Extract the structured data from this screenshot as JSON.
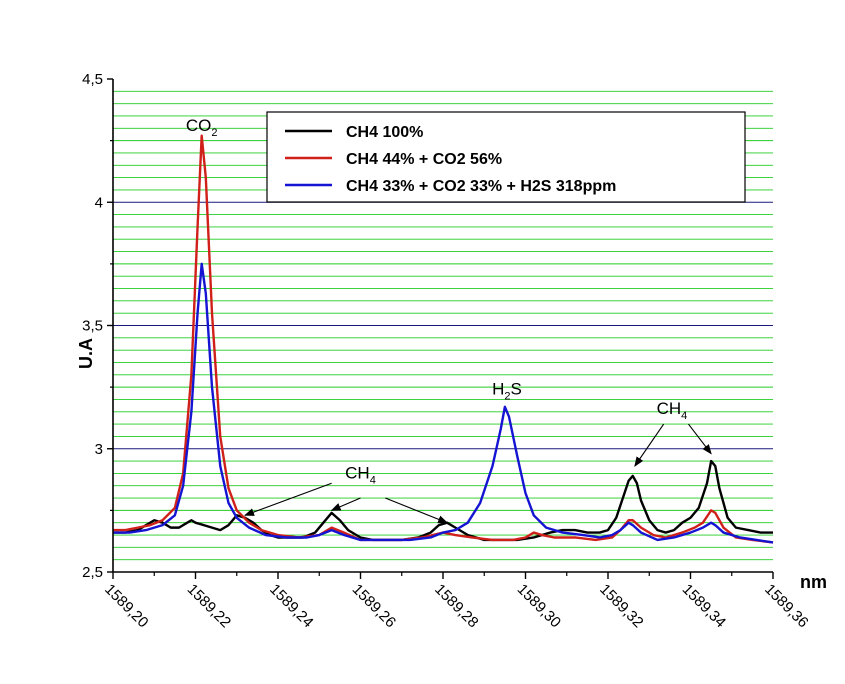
{
  "chart_data": {
    "type": "line",
    "xlabel": "nm",
    "ylabel": "U.A",
    "xlim": [
      1589.2,
      1589.36
    ],
    "ylim": [
      2.5,
      4.5
    ],
    "x_ticks": [
      "1589,20",
      "1589,22",
      "1589,24",
      "1589,26",
      "1589,28",
      "1589,30",
      "1589,32",
      "1589,34",
      "1589,36"
    ],
    "y_ticks": [
      "2,5",
      "3",
      "3,5",
      "4",
      "4,5"
    ],
    "grid": {
      "minor": true,
      "minor_color": "#22cc22",
      "major_color": "#1a1a7a"
    },
    "legend_position": "top-right",
    "series": [
      {
        "name": "CH4 100%",
        "color": "#000000",
        "points": [
          [
            1589.2,
            2.66
          ],
          [
            1589.203,
            2.66
          ],
          [
            1589.206,
            2.67
          ],
          [
            1589.208,
            2.69
          ],
          [
            1589.21,
            2.71
          ],
          [
            1589.212,
            2.7
          ],
          [
            1589.214,
            2.68
          ],
          [
            1589.216,
            2.68
          ],
          [
            1589.218,
            2.7
          ],
          [
            1589.219,
            2.71
          ],
          [
            1589.22,
            2.7
          ],
          [
            1589.222,
            2.69
          ],
          [
            1589.224,
            2.68
          ],
          [
            1589.226,
            2.67
          ],
          [
            1589.228,
            2.69
          ],
          [
            1589.229,
            2.71
          ],
          [
            1589.23,
            2.73
          ],
          [
            1589.232,
            2.72
          ],
          [
            1589.234,
            2.7
          ],
          [
            1589.236,
            2.67
          ],
          [
            1589.238,
            2.65
          ],
          [
            1589.24,
            2.64
          ],
          [
            1589.243,
            2.64
          ],
          [
            1589.246,
            2.64
          ],
          [
            1589.249,
            2.66
          ],
          [
            1589.251,
            2.7
          ],
          [
            1589.253,
            2.74
          ],
          [
            1589.255,
            2.71
          ],
          [
            1589.257,
            2.67
          ],
          [
            1589.26,
            2.64
          ],
          [
            1589.263,
            2.63
          ],
          [
            1589.266,
            2.63
          ],
          [
            1589.27,
            2.63
          ],
          [
            1589.274,
            2.64
          ],
          [
            1589.277,
            2.66
          ],
          [
            1589.279,
            2.69
          ],
          [
            1589.281,
            2.7
          ],
          [
            1589.283,
            2.68
          ],
          [
            1589.286,
            2.65
          ],
          [
            1589.29,
            2.63
          ],
          [
            1589.294,
            2.63
          ],
          [
            1589.298,
            2.63
          ],
          [
            1589.302,
            2.64
          ],
          [
            1589.306,
            2.66
          ],
          [
            1589.309,
            2.67
          ],
          [
            1589.312,
            2.67
          ],
          [
            1589.315,
            2.66
          ],
          [
            1589.318,
            2.66
          ],
          [
            1589.32,
            2.67
          ],
          [
            1589.322,
            2.72
          ],
          [
            1589.324,
            2.82
          ],
          [
            1589.325,
            2.87
          ],
          [
            1589.326,
            2.89
          ],
          [
            1589.327,
            2.86
          ],
          [
            1589.328,
            2.79
          ],
          [
            1589.33,
            2.71
          ],
          [
            1589.332,
            2.67
          ],
          [
            1589.334,
            2.66
          ],
          [
            1589.336,
            2.67
          ],
          [
            1589.338,
            2.7
          ],
          [
            1589.34,
            2.72
          ],
          [
            1589.342,
            2.76
          ],
          [
            1589.344,
            2.86
          ],
          [
            1589.345,
            2.95
          ],
          [
            1589.346,
            2.93
          ],
          [
            1589.347,
            2.84
          ],
          [
            1589.349,
            2.72
          ],
          [
            1589.351,
            2.68
          ],
          [
            1589.354,
            2.67
          ],
          [
            1589.357,
            2.66
          ],
          [
            1589.36,
            2.66
          ]
        ]
      },
      {
        "name": "CH4 44% + CO2 56%",
        "color": "#d0201a",
        "points": [
          [
            1589.2,
            2.67
          ],
          [
            1589.203,
            2.67
          ],
          [
            1589.206,
            2.68
          ],
          [
            1589.209,
            2.69
          ],
          [
            1589.212,
            2.71
          ],
          [
            1589.215,
            2.76
          ],
          [
            1589.217,
            2.9
          ],
          [
            1589.219,
            3.3
          ],
          [
            1589.2205,
            3.9
          ],
          [
            1589.2215,
            4.27
          ],
          [
            1589.2225,
            4.1
          ],
          [
            1589.224,
            3.55
          ],
          [
            1589.226,
            3.05
          ],
          [
            1589.228,
            2.84
          ],
          [
            1589.23,
            2.75
          ],
          [
            1589.233,
            2.7
          ],
          [
            1589.236,
            2.67
          ],
          [
            1589.24,
            2.65
          ],
          [
            1589.245,
            2.64
          ],
          [
            1589.25,
            2.65
          ],
          [
            1589.253,
            2.68
          ],
          [
            1589.256,
            2.66
          ],
          [
            1589.26,
            2.63
          ],
          [
            1589.265,
            2.63
          ],
          [
            1589.27,
            2.63
          ],
          [
            1589.275,
            2.64
          ],
          [
            1589.28,
            2.66
          ],
          [
            1589.283,
            2.65
          ],
          [
            1589.287,
            2.64
          ],
          [
            1589.292,
            2.63
          ],
          [
            1589.297,
            2.63
          ],
          [
            1589.3,
            2.64
          ],
          [
            1589.302,
            2.66
          ],
          [
            1589.304,
            2.65
          ],
          [
            1589.307,
            2.64
          ],
          [
            1589.312,
            2.64
          ],
          [
            1589.317,
            2.63
          ],
          [
            1589.321,
            2.64
          ],
          [
            1589.323,
            2.67
          ],
          [
            1589.325,
            2.71
          ],
          [
            1589.326,
            2.71
          ],
          [
            1589.328,
            2.68
          ],
          [
            1589.331,
            2.65
          ],
          [
            1589.334,
            2.64
          ],
          [
            1589.338,
            2.66
          ],
          [
            1589.341,
            2.68
          ],
          [
            1589.343,
            2.7
          ],
          [
            1589.345,
            2.75
          ],
          [
            1589.346,
            2.74
          ],
          [
            1589.348,
            2.68
          ],
          [
            1589.351,
            2.64
          ],
          [
            1589.355,
            2.63
          ],
          [
            1589.36,
            2.62
          ]
        ]
      },
      {
        "name": "CH4 33% + CO2 33% + H2S 318ppm",
        "color": "#1414d2",
        "points": [
          [
            1589.2,
            2.66
          ],
          [
            1589.204,
            2.66
          ],
          [
            1589.208,
            2.67
          ],
          [
            1589.212,
            2.69
          ],
          [
            1589.215,
            2.73
          ],
          [
            1589.217,
            2.85
          ],
          [
            1589.219,
            3.15
          ],
          [
            1589.2205,
            3.55
          ],
          [
            1589.2215,
            3.75
          ],
          [
            1589.2225,
            3.63
          ],
          [
            1589.224,
            3.25
          ],
          [
            1589.226,
            2.93
          ],
          [
            1589.228,
            2.78
          ],
          [
            1589.23,
            2.72
          ],
          [
            1589.233,
            2.68
          ],
          [
            1589.237,
            2.65
          ],
          [
            1589.242,
            2.64
          ],
          [
            1589.247,
            2.64
          ],
          [
            1589.25,
            2.65
          ],
          [
            1589.253,
            2.67
          ],
          [
            1589.256,
            2.65
          ],
          [
            1589.26,
            2.63
          ],
          [
            1589.266,
            2.63
          ],
          [
            1589.272,
            2.63
          ],
          [
            1589.277,
            2.64
          ],
          [
            1589.28,
            2.66
          ],
          [
            1589.283,
            2.67
          ],
          [
            1589.286,
            2.7
          ],
          [
            1589.289,
            2.78
          ],
          [
            1589.292,
            2.93
          ],
          [
            1589.294,
            3.08
          ],
          [
            1589.295,
            3.17
          ],
          [
            1589.296,
            3.13
          ],
          [
            1589.298,
            2.97
          ],
          [
            1589.3,
            2.82
          ],
          [
            1589.302,
            2.73
          ],
          [
            1589.305,
            2.68
          ],
          [
            1589.309,
            2.66
          ],
          [
            1589.314,
            2.65
          ],
          [
            1589.318,
            2.64
          ],
          [
            1589.321,
            2.65
          ],
          [
            1589.323,
            2.67
          ],
          [
            1589.325,
            2.7
          ],
          [
            1589.326,
            2.69
          ],
          [
            1589.328,
            2.66
          ],
          [
            1589.332,
            2.63
          ],
          [
            1589.336,
            2.64
          ],
          [
            1589.34,
            2.66
          ],
          [
            1589.343,
            2.68
          ],
          [
            1589.345,
            2.7
          ],
          [
            1589.346,
            2.69
          ],
          [
            1589.348,
            2.66
          ],
          [
            1589.352,
            2.64
          ],
          [
            1589.356,
            2.63
          ],
          [
            1589.36,
            2.62
          ]
        ]
      }
    ],
    "annotations": [
      {
        "text": "CO",
        "sub": "2",
        "x": 1589.2215,
        "y": 4.29,
        "arrows": []
      },
      {
        "text": "CH",
        "sub": "4",
        "x": 1589.26,
        "y": 2.88,
        "arrows": [
          [
            1589.253,
            2.86,
            1589.232,
            2.73
          ],
          [
            1589.26,
            2.8,
            1589.253,
            2.75
          ],
          [
            1589.266,
            2.8,
            1589.281,
            2.7
          ]
        ]
      },
      {
        "text": "H",
        "sub": "2",
        "text2": "S",
        "x": 1589.2955,
        "y": 3.22,
        "arrows": []
      },
      {
        "text": "CH",
        "sub": "4",
        "x": 1589.3355,
        "y": 3.14,
        "arrows": [
          [
            1589.3335,
            3.1,
            1589.3265,
            2.93
          ],
          [
            1589.3395,
            3.1,
            1589.345,
            2.98
          ]
        ]
      }
    ]
  }
}
